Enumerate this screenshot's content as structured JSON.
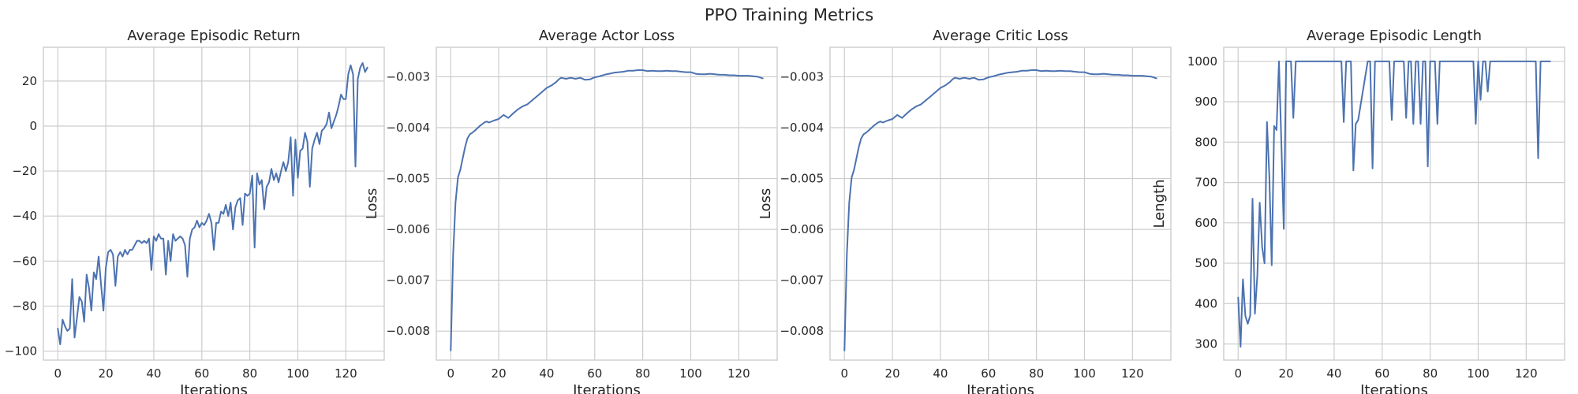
{
  "title": "PPO Training Metrics",
  "colors": {
    "line": "#4c72b0",
    "grid": "#cccccc",
    "axes": "#cccccc",
    "text": "#262626"
  },
  "chart_data": [
    {
      "type": "line",
      "title": "Average Episodic Return",
      "xlabel": "Iterations",
      "ylabel": "",
      "xlim": [
        -6,
        136
      ],
      "ylim": [
        -104,
        35
      ],
      "xticks": [
        0,
        20,
        40,
        60,
        80,
        100,
        120
      ],
      "yticks": [
        -100,
        -80,
        -60,
        -40,
        -20,
        0,
        20
      ],
      "ytick_labels": [
        "−100",
        "−80",
        "−60",
        "−40",
        "−20",
        "0",
        "20"
      ],
      "grid": true,
      "series": [
        {
          "name": "",
          "x": [
            0,
            1,
            2,
            3,
            4,
            5,
            6,
            7,
            8,
            9,
            10,
            11,
            12,
            13,
            14,
            15,
            16,
            17,
            18,
            19,
            20,
            21,
            22,
            23,
            24,
            25,
            26,
            27,
            28,
            29,
            30,
            31,
            32,
            33,
            34,
            35,
            36,
            37,
            38,
            39,
            40,
            41,
            42,
            43,
            44,
            45,
            46,
            47,
            48,
            49,
            50,
            51,
            52,
            53,
            54,
            55,
            56,
            57,
            58,
            59,
            60,
            61,
            62,
            63,
            64,
            65,
            66,
            67,
            68,
            69,
            70,
            71,
            72,
            73,
            74,
            75,
            76,
            77,
            78,
            79,
            80,
            81,
            82,
            83,
            84,
            85,
            86,
            87,
            88,
            89,
            90,
            91,
            92,
            93,
            94,
            95,
            96,
            97,
            98,
            99,
            100,
            101,
            102,
            103,
            104,
            105,
            106,
            107,
            108,
            109,
            110,
            111,
            112,
            113,
            114,
            115,
            116,
            117,
            118,
            119,
            120,
            121,
            122,
            123,
            124,
            125,
            126,
            127,
            128,
            129
          ],
          "y": [
            -90,
            -97,
            -86,
            -89,
            -91,
            -90,
            -68,
            -94,
            -85,
            -76,
            -78,
            -87,
            -66,
            -72,
            -82,
            -65,
            -68,
            -58,
            -70,
            -82,
            -63,
            -56,
            -55,
            -57,
            -71,
            -58,
            -56,
            -58,
            -55,
            -57,
            -55,
            -55,
            -53,
            -51,
            -51,
            -52,
            -51,
            -52,
            -50,
            -64,
            -49,
            -51,
            -48,
            -50,
            -50,
            -66,
            -51,
            -60,
            -48,
            -51,
            -50,
            -49,
            -50,
            -53,
            -67,
            -50,
            -46,
            -45,
            -42,
            -45,
            -43,
            -44,
            -42,
            -39,
            -43,
            -55,
            -43,
            -43,
            -38,
            -39,
            -35,
            -40,
            -34,
            -46,
            -36,
            -33,
            -32,
            -44,
            -30,
            -31,
            -30,
            -22,
            -54,
            -21,
            -26,
            -24,
            -37,
            -27,
            -25,
            -19,
            -24,
            -21,
            -25,
            -20,
            -16,
            -20,
            -16,
            -5,
            -31,
            -6,
            -23,
            -11,
            -10,
            -3,
            -7,
            -27,
            -10,
            -6,
            -3,
            -8,
            -2,
            -1,
            1,
            6,
            -1,
            2,
            5,
            9,
            14,
            12,
            12,
            23,
            27,
            23,
            -18,
            21,
            26,
            28,
            24,
            26
          ]
        }
      ]
    },
    {
      "type": "line",
      "title": "Average Actor Loss",
      "xlabel": "Iterations",
      "ylabel": "Loss",
      "xlim": [
        -6,
        136
      ],
      "ylim": [
        -0.00857,
        -0.00242
      ],
      "xticks": [
        0,
        20,
        40,
        60,
        80,
        100,
        120
      ],
      "yticks": [
        -0.008,
        -0.007,
        -0.006,
        -0.005,
        -0.004,
        -0.003
      ],
      "ytick_labels": [
        "−0.008",
        "−0.007",
        "−0.006",
        "−0.005",
        "−0.004",
        "−0.003"
      ],
      "grid": true,
      "series": [
        {
          "name": "",
          "x": [
            0,
            1,
            2,
            3,
            4,
            5,
            6,
            7,
            8,
            9,
            10,
            12,
            14,
            15,
            16,
            18,
            20,
            22,
            24,
            26,
            28,
            30,
            32,
            34,
            36,
            38,
            40,
            42,
            44,
            45,
            46,
            48,
            50,
            52,
            54,
            56,
            58,
            60,
            62,
            64,
            66,
            68,
            70,
            72,
            74,
            76,
            78,
            80,
            82,
            84,
            86,
            88,
            90,
            92,
            94,
            96,
            98,
            100,
            102,
            104,
            106,
            108,
            110,
            112,
            114,
            116,
            118,
            120,
            122,
            124,
            126,
            128,
            130
          ],
          "y": [
            -0.00838,
            -0.0065,
            -0.00548,
            -0.00498,
            -0.00483,
            -0.0046,
            -0.00438,
            -0.00421,
            -0.00413,
            -0.0041,
            -0.00406,
            -0.00397,
            -0.0039,
            -0.00388,
            -0.0039,
            -0.00386,
            -0.00383,
            -0.00375,
            -0.00381,
            -0.00372,
            -0.00364,
            -0.00358,
            -0.00354,
            -0.00346,
            -0.00338,
            -0.0033,
            -0.00322,
            -0.00317,
            -0.0031,
            -0.00305,
            -0.00302,
            -0.00304,
            -0.00302,
            -0.00304,
            -0.00302,
            -0.00306,
            -0.00305,
            -0.00301,
            -0.00299,
            -0.00296,
            -0.00294,
            -0.00292,
            -0.00291,
            -0.0029,
            -0.00288,
            -0.00288,
            -0.00287,
            -0.00287,
            -0.00289,
            -0.00288,
            -0.00289,
            -0.00289,
            -0.00288,
            -0.00289,
            -0.00289,
            -0.0029,
            -0.00291,
            -0.00291,
            -0.00294,
            -0.00295,
            -0.00295,
            -0.00294,
            -0.00295,
            -0.00296,
            -0.00296,
            -0.00297,
            -0.00297,
            -0.00298,
            -0.00298,
            -0.00298,
            -0.00299,
            -0.003,
            -0.00303
          ]
        }
      ]
    },
    {
      "type": "line",
      "title": "Average Critic Loss",
      "xlabel": "Iterations",
      "ylabel": "Loss",
      "xlim": [
        -6,
        136
      ],
      "ylim": [
        -0.00857,
        -0.00242
      ],
      "xticks": [
        0,
        20,
        40,
        60,
        80,
        100,
        120
      ],
      "yticks": [
        -0.008,
        -0.007,
        -0.006,
        -0.005,
        -0.004,
        -0.003
      ],
      "ytick_labels": [
        "−0.008",
        "−0.007",
        "−0.006",
        "−0.005",
        "−0.004",
        "−0.003"
      ],
      "grid": true,
      "series": [
        {
          "name": "",
          "x": [
            0,
            1,
            2,
            3,
            4,
            5,
            6,
            7,
            8,
            9,
            10,
            12,
            14,
            15,
            16,
            18,
            20,
            22,
            24,
            26,
            28,
            30,
            32,
            34,
            36,
            38,
            40,
            42,
            44,
            45,
            46,
            48,
            50,
            52,
            54,
            56,
            58,
            60,
            62,
            64,
            66,
            68,
            70,
            72,
            74,
            76,
            78,
            80,
            82,
            84,
            86,
            88,
            90,
            92,
            94,
            96,
            98,
            100,
            102,
            104,
            106,
            108,
            110,
            112,
            114,
            116,
            118,
            120,
            122,
            124,
            126,
            128,
            130
          ],
          "y": [
            -0.00838,
            -0.0065,
            -0.00548,
            -0.00498,
            -0.00483,
            -0.0046,
            -0.00438,
            -0.00421,
            -0.00413,
            -0.0041,
            -0.00406,
            -0.00397,
            -0.0039,
            -0.00388,
            -0.0039,
            -0.00386,
            -0.00383,
            -0.00375,
            -0.00381,
            -0.00372,
            -0.00364,
            -0.00358,
            -0.00354,
            -0.00346,
            -0.00338,
            -0.0033,
            -0.00322,
            -0.00317,
            -0.0031,
            -0.00305,
            -0.00302,
            -0.00304,
            -0.00302,
            -0.00304,
            -0.00302,
            -0.00306,
            -0.00305,
            -0.00301,
            -0.00299,
            -0.00296,
            -0.00294,
            -0.00292,
            -0.00291,
            -0.0029,
            -0.00288,
            -0.00288,
            -0.00287,
            -0.00287,
            -0.00289,
            -0.00288,
            -0.00289,
            -0.00289,
            -0.00288,
            -0.00289,
            -0.00289,
            -0.0029,
            -0.00291,
            -0.00291,
            -0.00294,
            -0.00295,
            -0.00295,
            -0.00294,
            -0.00295,
            -0.00296,
            -0.00296,
            -0.00297,
            -0.00297,
            -0.00298,
            -0.00298,
            -0.00298,
            -0.00299,
            -0.003,
            -0.00303
          ]
        }
      ]
    },
    {
      "type": "line",
      "title": "Average Episodic Length",
      "xlabel": "Iterations",
      "ylabel": "Length",
      "xlim": [
        -6,
        136
      ],
      "ylim": [
        260,
        1035
      ],
      "xticks": [
        0,
        20,
        40,
        60,
        80,
        100,
        120
      ],
      "yticks": [
        300,
        400,
        500,
        600,
        700,
        800,
        900,
        1000
      ],
      "ytick_labels": [
        "300",
        "400",
        "500",
        "600",
        "700",
        "800",
        "900",
        "1000"
      ],
      "grid": true,
      "series": [
        {
          "name": "",
          "x": [
            0,
            1,
            2,
            3,
            4,
            5,
            6,
            7,
            8,
            9,
            10,
            11,
            12,
            13,
            14,
            15,
            16,
            17,
            18,
            19,
            20,
            21,
            22,
            23,
            24,
            25,
            26,
            30,
            35,
            40,
            43,
            44,
            45,
            46,
            47,
            48,
            49,
            50,
            54,
            55,
            56,
            57,
            62,
            63,
            64,
            65,
            68,
            69,
            70,
            71,
            72,
            73,
            74,
            75,
            76,
            77,
            78,
            79,
            80,
            81,
            82,
            83,
            84,
            85,
            86,
            87,
            88,
            95,
            98,
            99,
            100,
            101,
            102,
            103,
            104,
            105,
            106,
            110,
            115,
            120,
            124,
            125,
            126,
            130
          ],
          "y": [
            415,
            293,
            460,
            370,
            350,
            370,
            660,
            375,
            470,
            650,
            540,
            500,
            850,
            715,
            495,
            840,
            830,
            1000,
            800,
            585,
            1000,
            1000,
            1000,
            860,
            1000,
            1000,
            1000,
            1000,
            1000,
            1000,
            1000,
            850,
            1000,
            1000,
            1000,
            730,
            845,
            855,
            1000,
            1000,
            735,
            1000,
            1000,
            1000,
            855,
            1000,
            1000,
            1000,
            860,
            1000,
            1000,
            845,
            1000,
            1000,
            845,
            1000,
            1000,
            740,
            1000,
            1000,
            1000,
            845,
            1000,
            1000,
            1000,
            1000,
            1000,
            1000,
            1000,
            845,
            1000,
            905,
            1000,
            1000,
            925,
            1000,
            1000,
            1000,
            1000,
            1000,
            1000,
            760,
            1000,
            1000
          ]
        }
      ]
    }
  ]
}
